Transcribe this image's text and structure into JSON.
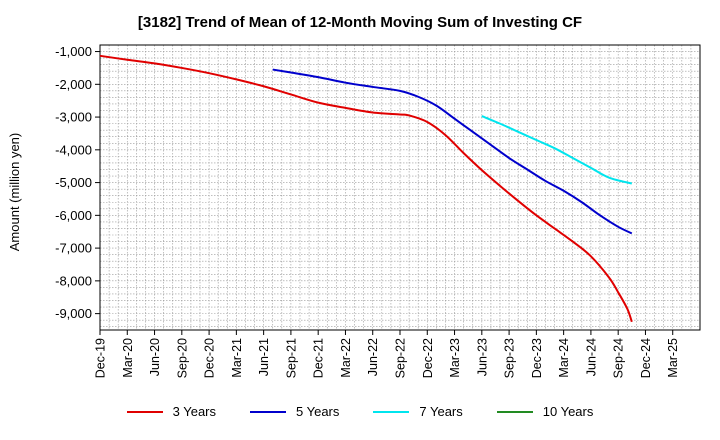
{
  "chart_data": {
    "type": "line",
    "title": "[3182]  Trend of Mean of 12-Month Moving Sum of Investing CF",
    "xlabel": "",
    "ylabel": "Amount (million yen)",
    "ylim": [
      -9500,
      -800
    ],
    "yticks": [
      -1000,
      -2000,
      -3000,
      -4000,
      -5000,
      -6000,
      -7000,
      -8000,
      -9000
    ],
    "ytick_labels": [
      "-1,000",
      "-2,000",
      "-3,000",
      "-4,000",
      "-5,000",
      "-6,000",
      "-7,000",
      "-8,000",
      "-9,000"
    ],
    "xlim": [
      0,
      66
    ],
    "xtick_labels": [
      "Dec-19",
      "Mar-20",
      "Jun-20",
      "Sep-20",
      "Dec-20",
      "Mar-21",
      "Jun-21",
      "Sep-21",
      "Dec-21",
      "Mar-22",
      "Jun-22",
      "Sep-22",
      "Dec-22",
      "Mar-23",
      "Jun-23",
      "Sep-23",
      "Dec-23",
      "Mar-24",
      "Jun-24",
      "Sep-24",
      "Dec-24",
      "Mar-25"
    ],
    "grid": true,
    "legend_position": "bottom",
    "series": [
      {
        "name": "3 Years",
        "color": "#e00000",
        "points": [
          [
            0,
            -1130
          ],
          [
            3,
            -1250
          ],
          [
            6,
            -1360
          ],
          [
            9,
            -1500
          ],
          [
            12,
            -1660
          ],
          [
            15,
            -1850
          ],
          [
            18,
            -2060
          ],
          [
            21,
            -2310
          ],
          [
            24,
            -2560
          ],
          [
            27,
            -2720
          ],
          [
            30,
            -2860
          ],
          [
            33,
            -2920
          ],
          [
            34,
            -2950
          ],
          [
            36,
            -3150
          ],
          [
            38,
            -3550
          ],
          [
            40,
            -4100
          ],
          [
            42,
            -4620
          ],
          [
            44,
            -5100
          ],
          [
            46,
            -5560
          ],
          [
            48,
            -6000
          ],
          [
            50,
            -6400
          ],
          [
            52,
            -6800
          ],
          [
            54,
            -7250
          ],
          [
            56,
            -7900
          ],
          [
            57,
            -8350
          ],
          [
            58,
            -8850
          ],
          [
            58.5,
            -9250
          ]
        ]
      },
      {
        "name": "5 Years",
        "color": "#0000cc",
        "points": [
          [
            19,
            -1550
          ],
          [
            21,
            -1640
          ],
          [
            24,
            -1780
          ],
          [
            27,
            -1950
          ],
          [
            30,
            -2080
          ],
          [
            33,
            -2200
          ],
          [
            35,
            -2380
          ],
          [
            37,
            -2650
          ],
          [
            39,
            -3050
          ],
          [
            41,
            -3450
          ],
          [
            43,
            -3850
          ],
          [
            45,
            -4250
          ],
          [
            47,
            -4600
          ],
          [
            49,
            -4950
          ],
          [
            51,
            -5250
          ],
          [
            53,
            -5600
          ],
          [
            55,
            -6000
          ],
          [
            57,
            -6350
          ],
          [
            58.5,
            -6550
          ]
        ]
      },
      {
        "name": "7 Years",
        "color": "#00e5ee",
        "points": [
          [
            42,
            -2970
          ],
          [
            44,
            -3200
          ],
          [
            46,
            -3450
          ],
          [
            48,
            -3700
          ],
          [
            50,
            -3950
          ],
          [
            52,
            -4250
          ],
          [
            54,
            -4550
          ],
          [
            56,
            -4850
          ],
          [
            58.5,
            -5030
          ]
        ]
      },
      {
        "name": "10 Years",
        "color": "#228b22",
        "points": []
      }
    ]
  }
}
